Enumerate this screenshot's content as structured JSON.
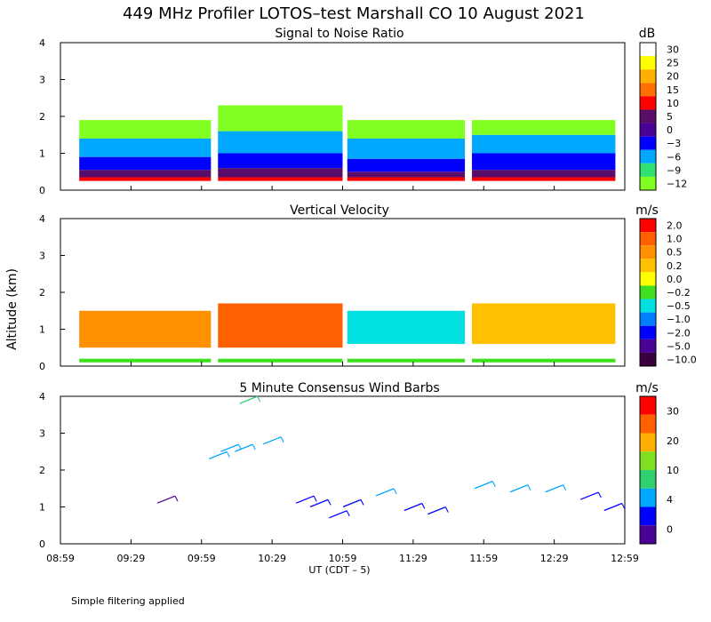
{
  "title": "449 MHz Profiler LOTOS–test Marshall CO 10 August 2021",
  "ylabel": "Altitude (km)",
  "xlabel": "UT  (CDT – 5)",
  "footer": "Simple filtering applied",
  "x_ticks": [
    "08:59",
    "09:29",
    "09:59",
    "10:29",
    "10:59",
    "11:29",
    "11:59",
    "12:29",
    "12:59"
  ],
  "chart_data": [
    {
      "type": "heatmap",
      "title": "Signal to Noise Ratio",
      "unit": "dB",
      "xlim": [
        0,
        240
      ],
      "ylim": [
        0,
        4
      ],
      "y_ticks": [
        0,
        1,
        2,
        3,
        4
      ],
      "colorbar": {
        "labels": [
          "30",
          "25",
          "20",
          "15",
          "10",
          "5",
          "0",
          "−3",
          "−6",
          "−9",
          "−12"
        ],
        "colors": [
          "#ffffff",
          "#ffff00",
          "#ffb000",
          "#ff7000",
          "#ff0000",
          "#5a0c6a",
          "#4b0096",
          "#0000ff",
          "#00a8ff",
          "#30e070",
          "#80ff20"
        ]
      },
      "segments": [
        {
          "x_start": 8,
          "x_end": 64,
          "top_km": 1.9,
          "level": [
            [
              0.25,
              0.35,
              "#ff0000"
            ],
            [
              0.35,
              0.55,
              "#5a0c6a"
            ],
            [
              0.55,
              0.9,
              "#0000ff"
            ],
            [
              0.9,
              1.4,
              "#00a8ff"
            ],
            [
              1.4,
              1.9,
              "#80ff20"
            ]
          ]
        },
        {
          "x_start": 67,
          "x_end": 120,
          "top_km": 2.3,
          "level": [
            [
              0.25,
              0.35,
              "#ff0000"
            ],
            [
              0.35,
              0.6,
              "#5a0c6a"
            ],
            [
              0.6,
              1.0,
              "#0000ff"
            ],
            [
              1.0,
              1.6,
              "#00a8ff"
            ],
            [
              1.6,
              2.3,
              "#80ff20"
            ]
          ]
        },
        {
          "x_start": 122,
          "x_end": 172,
          "top_km": 1.9,
          "level": [
            [
              0.25,
              0.35,
              "#ff0000"
            ],
            [
              0.35,
              0.5,
              "#5a0c6a"
            ],
            [
              0.5,
              0.85,
              "#0000ff"
            ],
            [
              0.85,
              1.4,
              "#00a8ff"
            ],
            [
              1.4,
              1.9,
              "#80ff20"
            ]
          ]
        },
        {
          "x_start": 175,
          "x_end": 236,
          "top_km": 1.9,
          "level": [
            [
              0.25,
              0.35,
              "#ff0000"
            ],
            [
              0.35,
              0.55,
              "#5a0c6a"
            ],
            [
              0.55,
              1.0,
              "#0000ff"
            ],
            [
              1.0,
              1.5,
              "#00a8ff"
            ],
            [
              1.5,
              1.9,
              "#80ff20"
            ]
          ]
        }
      ]
    },
    {
      "type": "heatmap",
      "title": "Vertical Velocity",
      "unit": "m/s",
      "xlim": [
        0,
        240
      ],
      "ylim": [
        0,
        4
      ],
      "y_ticks": [
        0,
        1,
        2,
        3,
        4
      ],
      "colorbar": {
        "labels": [
          "2.0",
          "1.0",
          "0.5",
          "0.2",
          "0.0",
          "−0.2",
          "−0.5",
          "−1.0",
          "−2.0",
          "−5.0",
          "−10.0"
        ],
        "colors": [
          "#ff0000",
          "#ff6000",
          "#ff9000",
          "#ffc000",
          "#ffff00",
          "#40e020",
          "#00e0e0",
          "#0080ff",
          "#0000ff",
          "#4b0096",
          "#3a0040"
        ]
      },
      "segments": [
        {
          "x_start": 8,
          "x_end": 64,
          "top_km": 1.5,
          "level": [
            [
              0.1,
              0.2,
              "#40e020"
            ],
            [
              0.5,
              1.5,
              "#ff9000"
            ]
          ]
        },
        {
          "x_start": 67,
          "x_end": 120,
          "top_km": 1.7,
          "level": [
            [
              0.1,
              0.2,
              "#40e020"
            ],
            [
              0.5,
              1.7,
              "#ff6000"
            ]
          ]
        },
        {
          "x_start": 122,
          "x_end": 172,
          "top_km": 1.5,
          "level": [
            [
              0.1,
              0.2,
              "#40e020"
            ],
            [
              0.6,
              1.5,
              "#00e0e0"
            ]
          ]
        },
        {
          "x_start": 175,
          "x_end": 236,
          "top_km": 1.7,
          "level": [
            [
              0.1,
              0.2,
              "#40e020"
            ],
            [
              0.6,
              1.7,
              "#ffc000"
            ]
          ]
        }
      ]
    },
    {
      "type": "scatter",
      "title": "5 Minute Consensus Wind Barbs",
      "unit": "m/s",
      "xlim": [
        0,
        240
      ],
      "ylim": [
        0,
        4
      ],
      "y_ticks": [
        0,
        1,
        2,
        3,
        4
      ],
      "colorbar": {
        "labels": [
          "30",
          "20",
          "10",
          "4",
          "0"
        ],
        "colors": [
          "#ff0000",
          "#ff6000",
          "#ffb000",
          "#80e020",
          "#30d070",
          "#00a8ff",
          "#0000ff",
          "#4b0096"
        ]
      },
      "barbs": [
        {
          "t": 45,
          "alt": 1.2,
          "speed": 2
        },
        {
          "t": 67,
          "alt": 2.4,
          "speed": 9
        },
        {
          "t": 72,
          "alt": 2.6,
          "speed": 10
        },
        {
          "t": 78,
          "alt": 2.6,
          "speed": 10
        },
        {
          "t": 80,
          "alt": 3.9,
          "speed": 11
        },
        {
          "t": 90,
          "alt": 2.8,
          "speed": 9
        },
        {
          "t": 104,
          "alt": 1.2,
          "speed": 3
        },
        {
          "t": 110,
          "alt": 1.1,
          "speed": 5
        },
        {
          "t": 118,
          "alt": 0.8,
          "speed": 5
        },
        {
          "t": 124,
          "alt": 1.1,
          "speed": 3
        },
        {
          "t": 138,
          "alt": 1.4,
          "speed": 9
        },
        {
          "t": 150,
          "alt": 1.0,
          "speed": 5
        },
        {
          "t": 160,
          "alt": 0.9,
          "speed": 4
        },
        {
          "t": 180,
          "alt": 1.6,
          "speed": 7
        },
        {
          "t": 195,
          "alt": 1.5,
          "speed": 8
        },
        {
          "t": 210,
          "alt": 1.5,
          "speed": 7
        },
        {
          "t": 225,
          "alt": 1.3,
          "speed": 5
        },
        {
          "t": 235,
          "alt": 1.0,
          "speed": 3
        }
      ]
    }
  ]
}
